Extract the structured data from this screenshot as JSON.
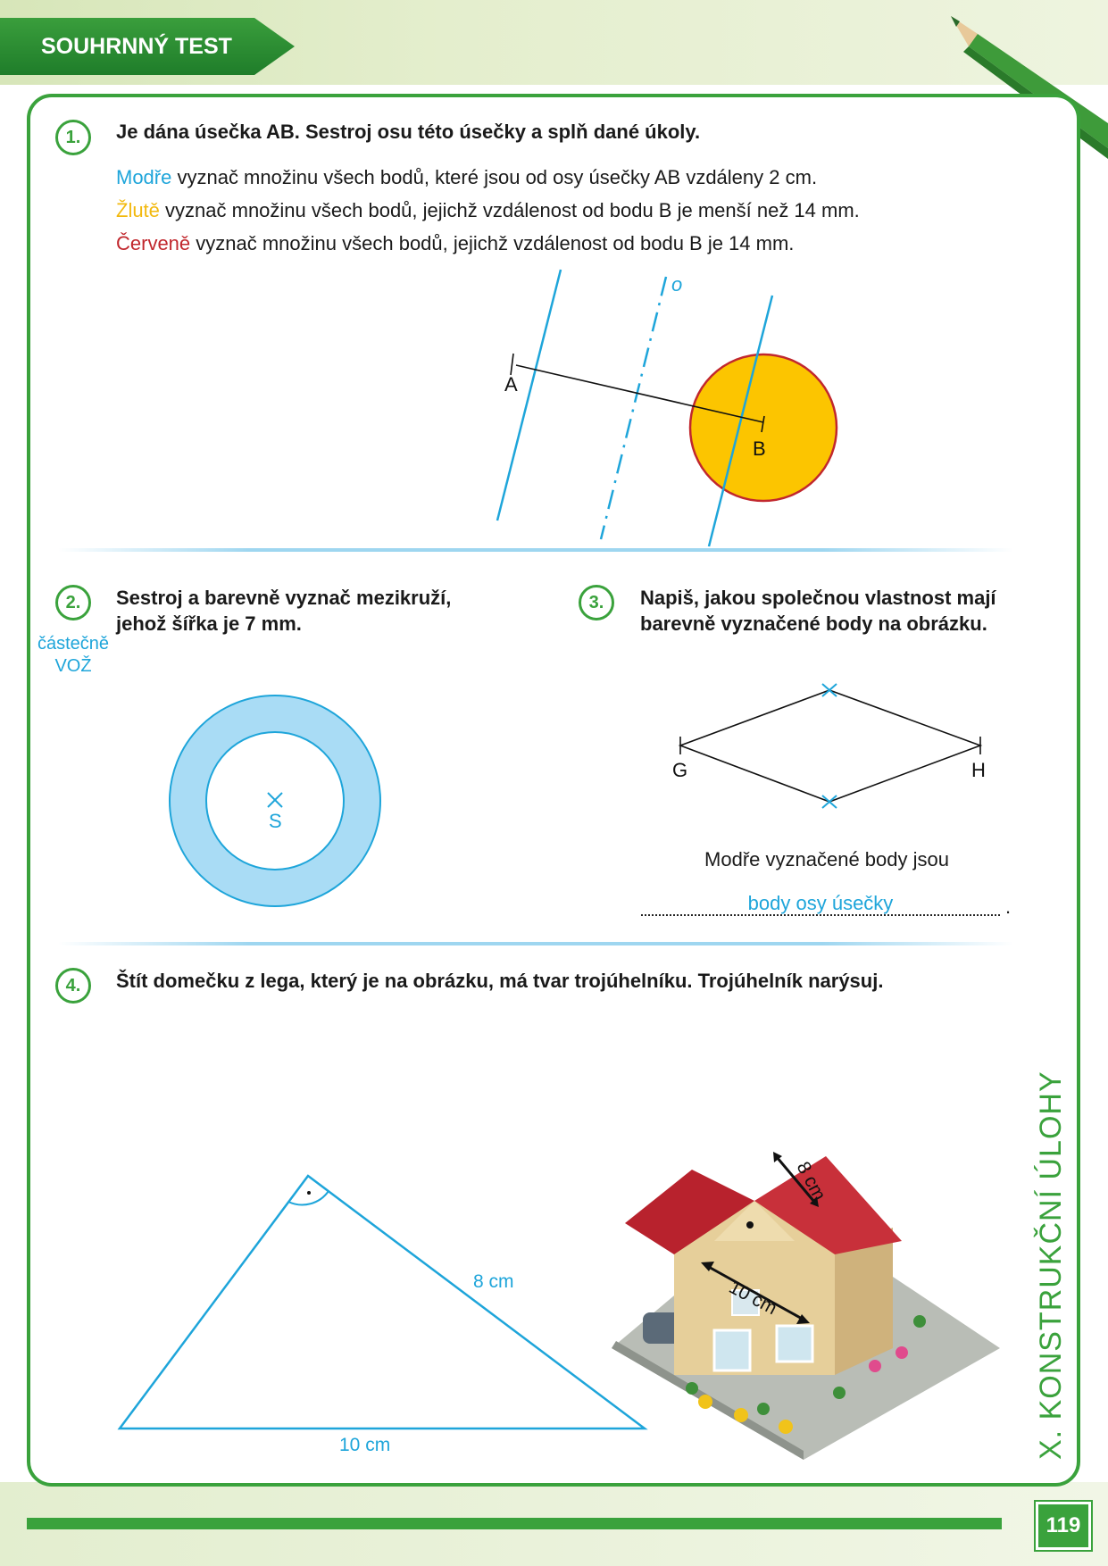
{
  "header": {
    "title": "SOUHRNNÝ TEST"
  },
  "task1": {
    "number": "1.",
    "title": "Je dána úsečka AB. Sestroj osu této úsečky a splň dané úkoly.",
    "lines": [
      {
        "color_word": "Modře",
        "rest": " vyznač množinu všech bodů, které jsou od osy úsečky AB vzdáleny 2 cm."
      },
      {
        "color_word": "Žlutě",
        "rest": " vyznač množinu všech bodů, jejichž vzdálenost od bodu B je menší než 14 mm."
      },
      {
        "color_word": "Červeně",
        "rest": " vyznač množinu všech bodů, jejichž vzdálenost od bodu B je 14 mm."
      }
    ],
    "labels": {
      "a": "A",
      "b": "B",
      "o": "o"
    }
  },
  "task2": {
    "number": "2.",
    "title_line1": "Sestroj a barevně vyznač mezikruží,",
    "title_line2": "jehož šířka je 7 mm.",
    "note_line1": "částečně",
    "note_line2": "VOŽ",
    "center_label": "S"
  },
  "task3": {
    "number": "3.",
    "title_line1": "Napiš, jakou společnou vlastnost mají",
    "title_line2": "barevně vyznačené body na obrázku.",
    "labels": {
      "g": "G",
      "h": "H"
    },
    "prompt": "Modře vyznačené body jsou",
    "answer": "body osy úsečky",
    "trailing": "."
  },
  "task4": {
    "number": "4.",
    "title": "Štít domečku z lega, který je na obrázku, má tvar trojúhelníku. Trojúhelník narýsuj.",
    "triangle_labels": {
      "side": "8 cm",
      "base": "10 cm"
    },
    "photo_labels": {
      "roof": "8 cm",
      "gable": "10 cm"
    }
  },
  "sidebar": {
    "chapter": "X. KONSTRUKČNÍ ÚLOHY"
  },
  "footer": {
    "page": "119"
  },
  "colors": {
    "accent": "#3aa23c",
    "blue": "#1ea5da",
    "yellow": "#f2b90f",
    "red": "#c1272d"
  }
}
